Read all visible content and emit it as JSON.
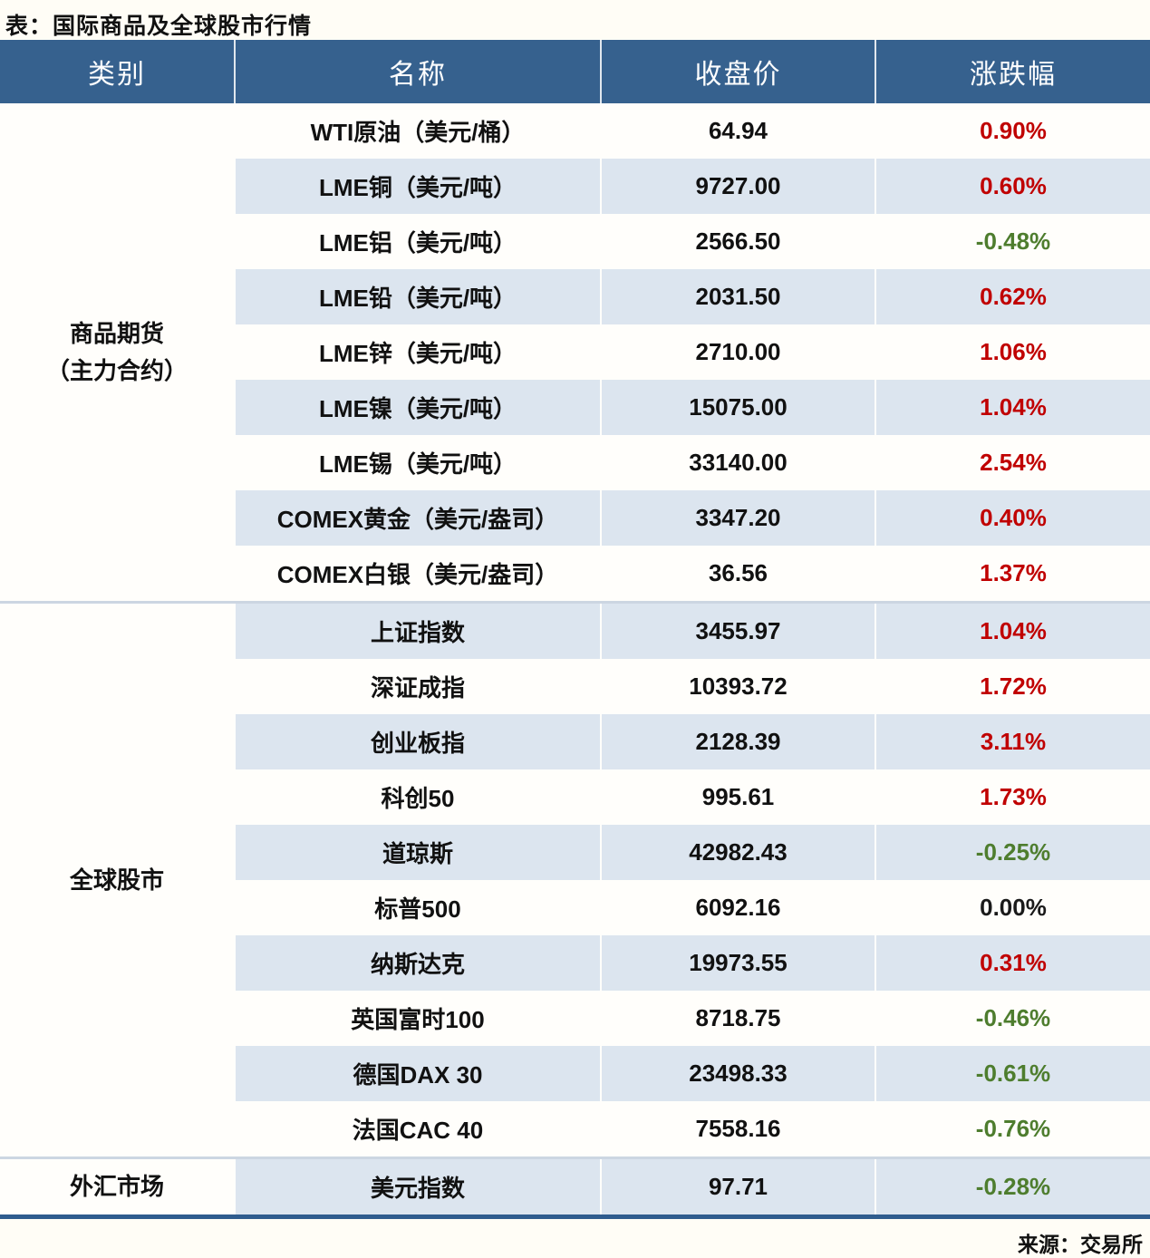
{
  "colors": {
    "page_bg": "#fffdf6",
    "row_bg": "#fffefb",
    "header_bg": "#36618e",
    "band": "#dce5ef",
    "up_red": "#c00000",
    "down_green": "#4e7d2e",
    "flat_black": "#1a1a1a",
    "separator": "#ccd6e2",
    "bottom_border": "#2f5c8e",
    "text": "#111111"
  },
  "chart_data": {
    "type": "table",
    "title": "表：国际商品及全球股市行情",
    "source": "来源：交易所",
    "columns": [
      "类别",
      "名称",
      "收盘价",
      "涨跌幅"
    ],
    "sections": [
      {
        "category": [
          "商品期货",
          "（主力合约）"
        ],
        "rows": [
          [
            "WTI原油（美元/桶）",
            "64.94",
            "0.90%"
          ],
          [
            "LME铜（美元/吨）",
            "9727.00",
            "0.60%"
          ],
          [
            "LME铝（美元/吨）",
            "2566.50",
            "-0.48%"
          ],
          [
            "LME铅（美元/吨）",
            "2031.50",
            "0.62%"
          ],
          [
            "LME锌（美元/吨）",
            "2710.00",
            "1.06%"
          ],
          [
            "LME镍（美元/吨）",
            "15075.00",
            "1.04%"
          ],
          [
            "LME锡（美元/吨）",
            "33140.00",
            "2.54%"
          ],
          [
            "COMEX黄金（美元/盎司）",
            "3347.20",
            "0.40%"
          ],
          [
            "COMEX白银（美元/盎司）",
            "36.56",
            "1.37%"
          ]
        ]
      },
      {
        "category": [
          "全球股市"
        ],
        "rows": [
          [
            "上证指数",
            "3455.97",
            "1.04%"
          ],
          [
            "深证成指",
            "10393.72",
            "1.72%"
          ],
          [
            "创业板指",
            "2128.39",
            "3.11%"
          ],
          [
            "科创50",
            "995.61",
            "1.73%"
          ],
          [
            "道琼斯",
            "42982.43",
            "-0.25%"
          ],
          [
            "标普500",
            "6092.16",
            "0.00%"
          ],
          [
            "纳斯达克",
            "19973.55",
            "0.31%"
          ],
          [
            "英国富时100",
            "8718.75",
            "-0.46%"
          ],
          [
            "德国DAX 30",
            "23498.33",
            "-0.61%"
          ],
          [
            "法国CAC 40",
            "7558.16",
            "-0.76%"
          ]
        ]
      },
      {
        "category": [
          "外汇市场"
        ],
        "rows": [
          [
            "美元指数",
            "97.71",
            "-0.28%"
          ]
        ]
      }
    ]
  }
}
